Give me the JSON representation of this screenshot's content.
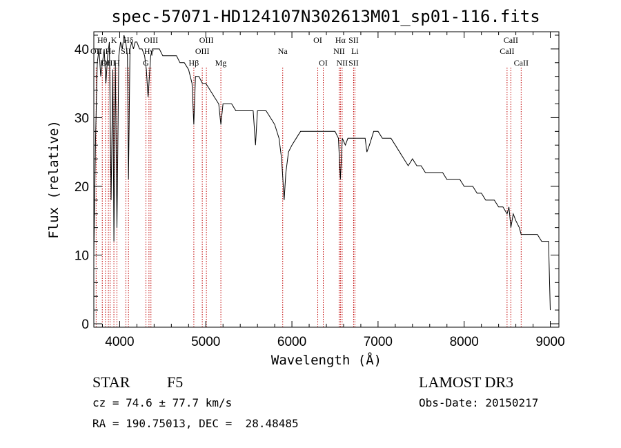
{
  "chart_data": {
    "type": "line",
    "title": "spec-57071-HD124107N302613M01_sp01-116.fits",
    "xlabel": "Wavelength (Å)",
    "ylabel": "Flux (relative)",
    "xlim": [
      3700,
      9100
    ],
    "ylim": [
      -0.5,
      42.5
    ],
    "xticks": [
      4000,
      5000,
      6000,
      7000,
      8000,
      9000
    ],
    "yticks": [
      0,
      10,
      20,
      30,
      40
    ],
    "series": [
      {
        "name": "spectrum",
        "color": "#000000",
        "x": [
          3700,
          3720,
          3740,
          3760,
          3780,
          3800,
          3820,
          3840,
          3860,
          3880,
          3900,
          3920,
          3933,
          3950,
          3968,
          3990,
          4010,
          4030,
          4050,
          4070,
          4090,
          4102,
          4120,
          4140,
          4160,
          4180,
          4200,
          4230,
          4260,
          4290,
          4310,
          4330,
          4340,
          4360,
          4380,
          4420,
          4460,
          4500,
          4540,
          4580,
          4620,
          4660,
          4700,
          4750,
          4800,
          4840,
          4861,
          4880,
          4920,
          4960,
          5000,
          5050,
          5100,
          5150,
          5175,
          5200,
          5250,
          5300,
          5350,
          5400,
          5450,
          5500,
          5550,
          5577,
          5600,
          5650,
          5700,
          5750,
          5800,
          5850,
          5880,
          5895,
          5910,
          5930,
          5960,
          6000,
          6050,
          6100,
          6150,
          6200,
          6250,
          6300,
          6350,
          6400,
          6450,
          6500,
          6540,
          6563,
          6585,
          6620,
          6650,
          6700,
          6750,
          6800,
          6850,
          6870,
          6900,
          6950,
          7000,
          7050,
          7100,
          7150,
          7200,
          7250,
          7300,
          7350,
          7400,
          7450,
          7500,
          7550,
          7600,
          7650,
          7700,
          7750,
          7800,
          7850,
          7900,
          7950,
          8000,
          8050,
          8100,
          8150,
          8200,
          8250,
          8300,
          8350,
          8400,
          8450,
          8498,
          8520,
          8542,
          8570,
          8600,
          8640,
          8662,
          8700,
          8750,
          8800,
          8850,
          8900,
          8950,
          8980,
          9000
        ],
        "values": [
          10,
          27,
          38,
          40,
          36,
          38,
          40,
          35,
          39,
          41,
          18,
          37,
          12,
          38,
          14,
          39,
          41,
          40,
          42,
          41,
          39,
          21,
          40,
          41,
          40,
          41,
          41,
          40,
          40,
          39,
          37,
          33,
          35,
          39,
          40,
          40,
          40,
          39,
          39,
          39,
          39,
          39,
          38,
          38,
          37,
          35,
          29,
          36,
          36,
          35,
          35,
          34,
          33,
          32,
          29,
          32,
          32,
          32,
          31,
          31,
          31,
          31,
          31,
          26,
          31,
          31,
          31,
          30,
          29,
          27,
          24,
          21,
          18,
          22,
          25,
          26,
          27,
          28,
          28,
          28,
          28,
          28,
          28,
          28,
          28,
          28,
          27,
          21,
          27,
          26,
          27,
          27,
          27,
          27,
          27,
          25,
          26,
          28,
          28,
          27,
          27,
          27,
          26,
          25,
          24,
          23,
          24,
          23,
          23,
          22,
          22,
          22,
          22,
          22,
          21,
          21,
          21,
          21,
          20,
          20,
          20,
          19,
          19,
          18,
          18,
          18,
          17,
          17,
          16,
          17,
          14,
          16,
          15,
          14,
          13,
          13,
          13,
          13,
          13,
          12,
          12,
          12,
          2
        ]
      }
    ],
    "emission_lines": [
      {
        "label": "Hθ",
        "wavelength": 3798,
        "row": 1
      },
      {
        "label": "OII",
        "wavelength": 3727,
        "row": 2
      },
      {
        "label": "OIII",
        "wavelength": 3869,
        "row": 3
      },
      {
        "label": "Hη",
        "wavelength": 3835,
        "row": 3
      },
      {
        "label": "He",
        "wavelength": 3889,
        "row": 2
      },
      {
        "label": "K",
        "wavelength": 3933,
        "row": 1
      },
      {
        "label": "SII",
        "wavelength": 4072,
        "row": 2
      },
      {
        "label": "H",
        "wavelength": 3968,
        "row": 3
      },
      {
        "label": "Hδ",
        "wavelength": 4102,
        "row": 1
      },
      {
        "label": "OIII",
        "wavelength": 4363,
        "row": 1
      },
      {
        "label": "Hγ",
        "wavelength": 4340,
        "row": 2
      },
      {
        "label": "G",
        "wavelength": 4305,
        "row": 3
      },
      {
        "label": "OIII",
        "wavelength": 5007,
        "row": 1
      },
      {
        "label": "OIII",
        "wavelength": 4959,
        "row": 2
      },
      {
        "label": "Hβ",
        "wavelength": 4861,
        "row": 3
      },
      {
        "label": "Mg",
        "wavelength": 5175,
        "row": 3
      },
      {
        "label": "Na",
        "wavelength": 5893,
        "row": 2
      },
      {
        "label": "OI",
        "wavelength": 6300,
        "row": 1
      },
      {
        "label": "OI",
        "wavelength": 6364,
        "row": 3
      },
      {
        "label": "Hα",
        "wavelength": 6563,
        "row": 1
      },
      {
        "label": "SII",
        "wavelength": 6716,
        "row": 1
      },
      {
        "label": "NII",
        "wavelength": 6548,
        "row": 2
      },
      {
        "label": "Li",
        "wavelength": 6731,
        "row": 2
      },
      {
        "label": "NII",
        "wavelength": 6583,
        "row": 3
      },
      {
        "label": "SII",
        "wavelength": 6716,
        "row": 3
      },
      {
        "label": "CaII",
        "wavelength": 8542,
        "row": 1
      },
      {
        "label": "CaII",
        "wavelength": 8498,
        "row": 2
      },
      {
        "label": "CaII",
        "wavelength": 8662,
        "row": 3
      }
    ],
    "line_marker_color": "#c00000"
  },
  "info": {
    "object_class": "STAR",
    "subclass": "F5",
    "survey": "LAMOST DR3",
    "redshift": "cz = 74.6 ± 77.7 km/s",
    "obs_date": "Obs-Date: 20150217",
    "coords": "RA = 190.75013, DEC =  28.48485"
  }
}
